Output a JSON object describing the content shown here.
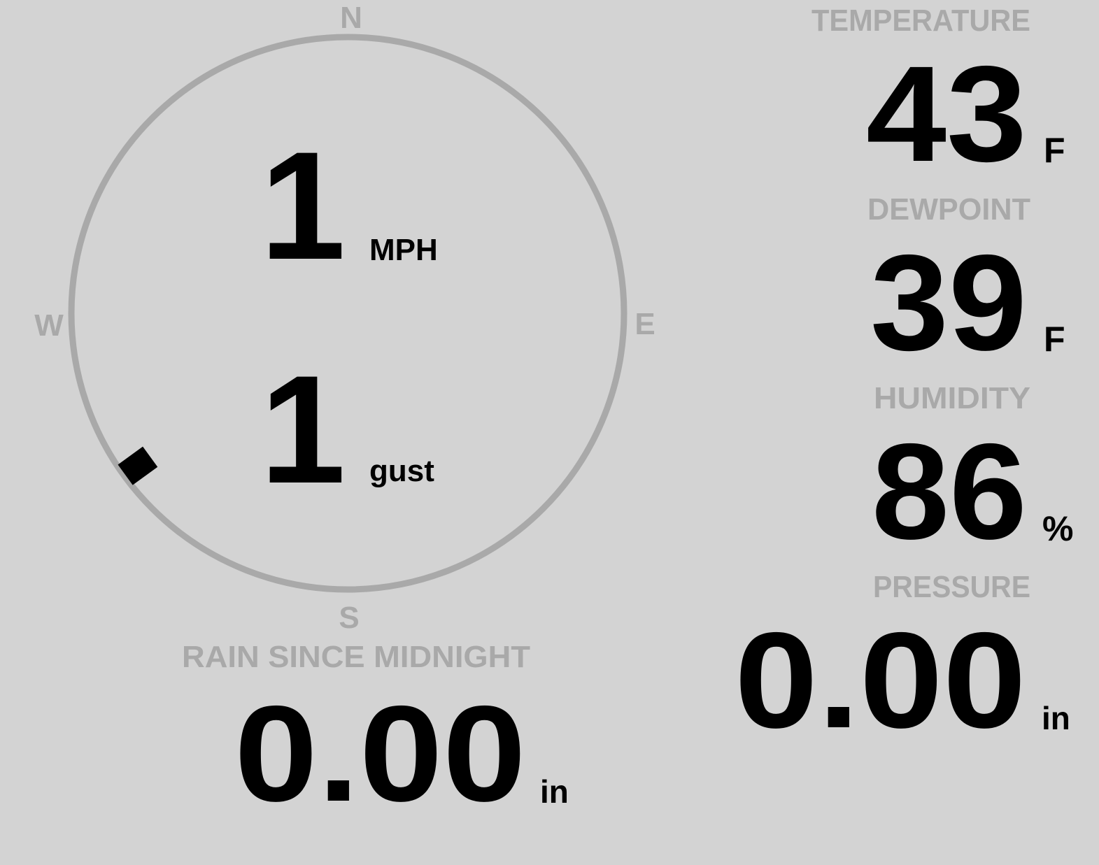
{
  "colors": {
    "background": "#d3d3d3",
    "muted": "#a9a9a9",
    "value": "#000000"
  },
  "wind": {
    "cardinals": {
      "n": "N",
      "s": "S",
      "e": "E",
      "w": "W"
    },
    "direction_degrees": 234,
    "speed": "1",
    "speed_unit": "MPH",
    "gust": "1",
    "gust_unit": "gust"
  },
  "temperature": {
    "label": "TEMPERATURE",
    "value": "43",
    "unit": "F"
  },
  "dewpoint": {
    "label": "DEWPOINT",
    "value": "39",
    "unit": "F"
  },
  "humidity": {
    "label": "HUMIDITY",
    "value": "86",
    "unit": "%"
  },
  "pressure": {
    "label": "PRESSURE",
    "value": "0.00",
    "unit": "in"
  },
  "rain": {
    "label": "RAIN SINCE MIDNIGHT",
    "value": "0.00",
    "unit": "in"
  }
}
